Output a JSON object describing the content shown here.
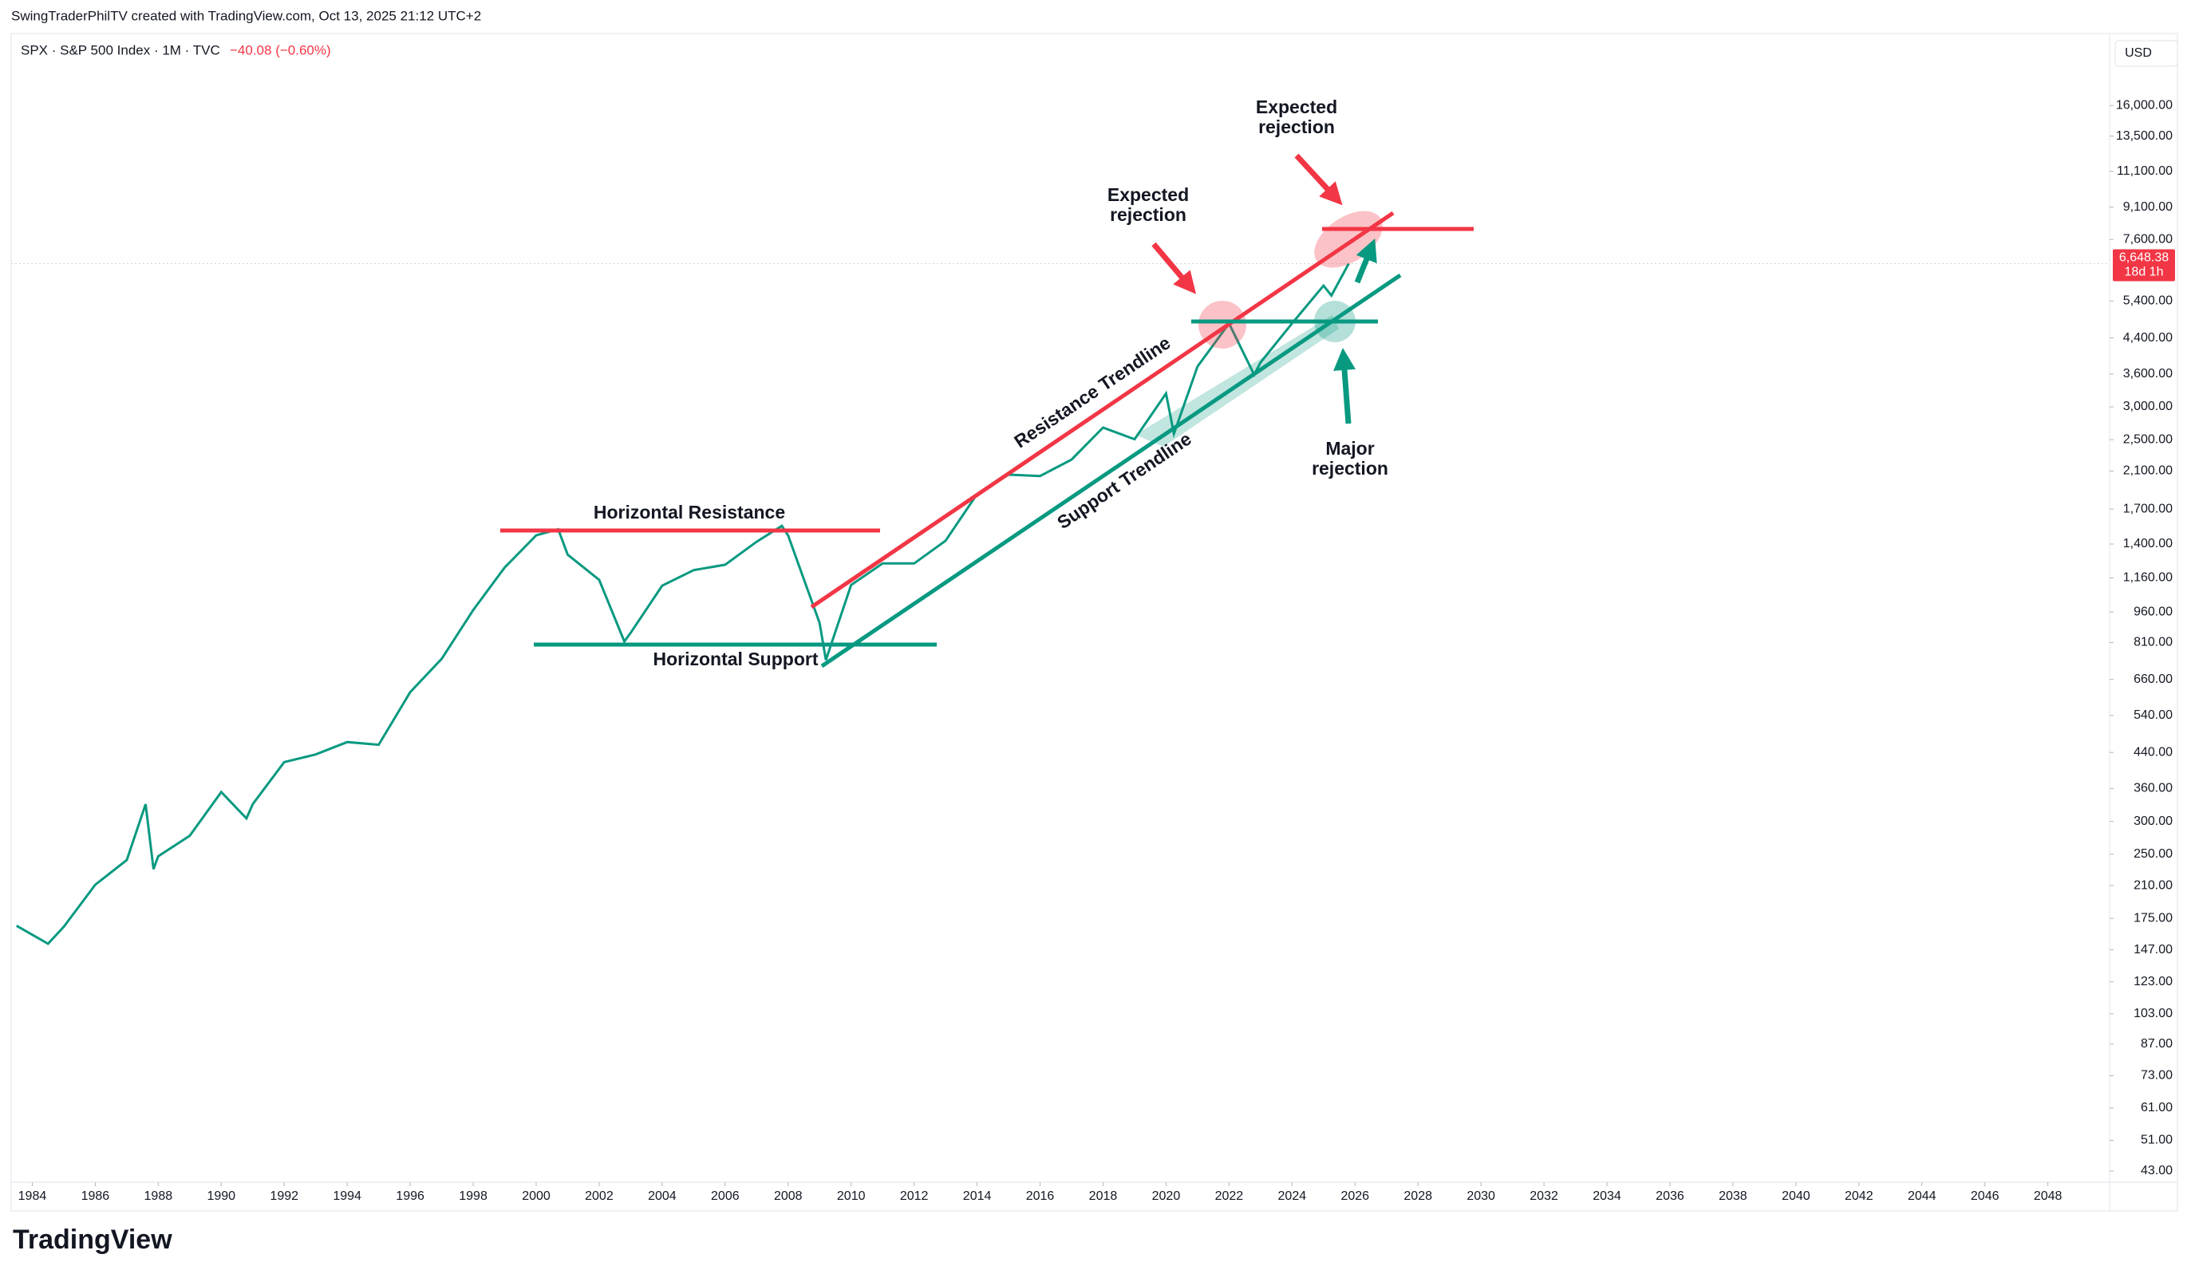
{
  "header": {
    "attribution": "SwingTraderPhilTV created with TradingView.com, Oct 13, 2025 21:12 UTC+2",
    "symbol": "SPX · S&P 500 Index · 1M · TVC",
    "change": "−40.08 (−0.60%)",
    "currency": "USD",
    "logo": "TradingView"
  },
  "chart_data": {
    "type": "line",
    "color": "#089981",
    "log_scale": true,
    "grid": false,
    "x": [
      1983.5,
      1984.5,
      1985,
      1986,
      1987,
      1987.6,
      1987.85,
      1988,
      1989,
      1990,
      1990.8,
      1991,
      1992,
      1993,
      1994,
      1995,
      1996,
      1997,
      1998,
      1999,
      2000,
      2000.7,
      2001,
      2002,
      2002.8,
      2003,
      2004,
      2005,
      2006,
      2007,
      2007.8,
      2008,
      2009,
      2009.2,
      2010,
      2011,
      2012,
      2013,
      2014,
      2015,
      2016,
      2017,
      2018,
      2019,
      2020,
      2020.25,
      2021,
      2022,
      2022.8,
      2023,
      2024,
      2025,
      2025.25,
      2025.8
    ],
    "values": [
      168,
      152,
      167,
      211,
      242,
      330,
      230,
      247,
      277,
      353,
      305,
      330,
      417,
      435,
      466,
      459,
      615,
      740,
      970,
      1229,
      1469,
      1520,
      1320,
      1148,
      815,
      855,
      1111,
      1211,
      1248,
      1418,
      1549,
      1468,
      903,
      735,
      1115,
      1257,
      1257,
      1426,
      1848,
      2058,
      2043,
      2238,
      2673,
      2506,
      3230,
      2584,
      3756,
      4766,
      3585,
      3839,
      4769,
      5881,
      5569,
      6648.38
    ],
    "xlim": [
      1983.33,
      2049.96
    ],
    "ylim": [
      40.4,
      23870
    ],
    "xticks": [
      1984,
      1986,
      1988,
      1990,
      1992,
      1994,
      1996,
      1998,
      2000,
      2002,
      2004,
      2006,
      2008,
      2010,
      2012,
      2014,
      2016,
      2018,
      2020,
      2022,
      2024,
      2026,
      2028,
      2030,
      2032,
      2034,
      2036,
      2038,
      2040,
      2042,
      2044,
      2046,
      2048
    ],
    "yticks": [
      {
        "value": 16000,
        "label": "16,000.00"
      },
      {
        "value": 13500,
        "label": "13,500.00"
      },
      {
        "value": 11100,
        "label": "11,100.00"
      },
      {
        "value": 9100,
        "label": "9,100.00"
      },
      {
        "value": 7600,
        "label": "7,600.00"
      },
      {
        "value": 5400,
        "label": "5,400.00"
      },
      {
        "value": 4400,
        "label": "4,400.00"
      },
      {
        "value": 3600,
        "label": "3,600.00"
      },
      {
        "value": 3000,
        "label": "3,000.00"
      },
      {
        "value": 2500,
        "label": "2,500.00"
      },
      {
        "value": 2100,
        "label": "2,100.00"
      },
      {
        "value": 1700,
        "label": "1,700.00"
      },
      {
        "value": 1400,
        "label": "1,400.00"
      },
      {
        "value": 1160,
        "label": "1,160.00"
      },
      {
        "value": 960,
        "label": "960.00"
      },
      {
        "value": 810,
        "label": "810.00"
      },
      {
        "value": 660,
        "label": "660.00"
      },
      {
        "value": 540,
        "label": "540.00"
      },
      {
        "value": 440,
        "label": "440.00"
      },
      {
        "value": 360,
        "label": "360.00"
      },
      {
        "value": 300,
        "label": "300.00"
      },
      {
        "value": 250,
        "label": "250.00"
      },
      {
        "value": 210,
        "label": "210.00"
      },
      {
        "value": 175,
        "label": "175.00"
      },
      {
        "value": 147,
        "label": "147.00"
      },
      {
        "value": 123,
        "label": "123.00"
      },
      {
        "value": 103,
        "label": "103.00"
      },
      {
        "value": 87,
        "label": "87.00"
      },
      {
        "value": 73,
        "label": "73.00"
      },
      {
        "value": 61,
        "label": "61.00"
      },
      {
        "value": 51,
        "label": "51.00"
      },
      {
        "value": 43,
        "label": "43.00"
      }
    ],
    "last_price": {
      "value": 6648.38,
      "label": "6,648.38"
    },
    "countdown": "18d 1h",
    "annotations": {
      "expected_rejection_top": [
        "Expected",
        "rejection"
      ],
      "expected_rejection_mid": [
        "Expected",
        "rejection"
      ],
      "major_rejection": [
        "Major",
        "rejection"
      ],
      "resistance_trendline": "Resistance Trendline",
      "support_trendline": "Support Trendline",
      "horizontal_resistance": "Horizontal Resistance",
      "horizontal_support": "Horizontal Support"
    }
  }
}
